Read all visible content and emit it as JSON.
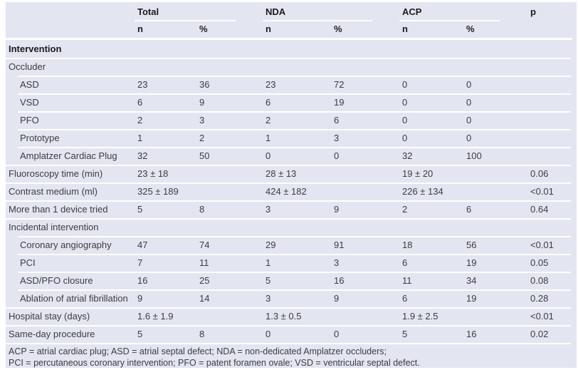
{
  "table": {
    "col_groups": [
      {
        "label": "Total"
      },
      {
        "label": "NDA"
      },
      {
        "label": "ACP"
      }
    ],
    "p_label": "p",
    "subheaders": [
      "n",
      "%",
      "n",
      "%",
      "n",
      "%"
    ],
    "rows": [
      {
        "label": "Intervention",
        "bold": true,
        "indent": false,
        "cells": [
          "",
          "",
          "",
          "",
          "",
          "",
          ""
        ]
      },
      {
        "label": "Occluder",
        "indent": false,
        "cells": [
          "",
          "",
          "",
          "",
          "",
          "",
          ""
        ]
      },
      {
        "label": "ASD",
        "indent": true,
        "cells": [
          "23",
          "36",
          "23",
          "72",
          "0",
          "0",
          ""
        ]
      },
      {
        "label": "VSD",
        "indent": true,
        "cells": [
          "6",
          "9",
          "6",
          "19",
          "0",
          "0",
          ""
        ]
      },
      {
        "label": "PFO",
        "indent": true,
        "cells": [
          "2",
          "3",
          "2",
          "6",
          "0",
          "0",
          ""
        ]
      },
      {
        "label": "Prototype",
        "indent": true,
        "cells": [
          "1",
          "2",
          "1",
          "3",
          "0",
          "0",
          ""
        ]
      },
      {
        "label": "Amplatzer Cardiac Plug",
        "indent": true,
        "cells": [
          "32",
          "50",
          "0",
          "0",
          "32",
          "100",
          ""
        ]
      },
      {
        "label": "Fluoroscopy time (min)",
        "indent": false,
        "cells": [
          "23 ± 18",
          "",
          "28 ± 13",
          "",
          "19 ± 20",
          "",
          "0.06"
        ]
      },
      {
        "label": "Contrast medium (ml)",
        "indent": false,
        "cells": [
          "325 ± 189",
          "",
          "424 ± 182",
          "",
          "226 ± 134",
          "",
          "<0.01"
        ]
      },
      {
        "label": "More than 1 device tried",
        "indent": false,
        "cells": [
          "5",
          "8",
          "3",
          "9",
          "2",
          "6",
          "0.64"
        ]
      },
      {
        "label": "Incidental intervention",
        "indent": false,
        "cells": [
          "",
          "",
          "",
          "",
          "",
          "",
          ""
        ]
      },
      {
        "label": "Coronary angiography",
        "indent": true,
        "cells": [
          "47",
          "74",
          "29",
          "91",
          "18",
          "56",
          "<0.01"
        ]
      },
      {
        "label": "PCI",
        "indent": true,
        "cells": [
          "7",
          "11",
          "1",
          "3",
          "6",
          "19",
          "0.05"
        ]
      },
      {
        "label": "ASD/PFO closure",
        "indent": true,
        "cells": [
          "16",
          "25",
          "5",
          "16",
          "11",
          "34",
          "0.08"
        ]
      },
      {
        "label": "Ablation of atrial fibrillation",
        "indent": true,
        "cells": [
          "9",
          "14",
          "3",
          "9",
          "6",
          "19",
          "0.28"
        ]
      },
      {
        "label": "Hospital stay (days)",
        "indent": false,
        "cells": [
          "1.6 ± 1.9",
          "",
          "1.3 ± 0.5",
          "",
          "1.9 ± 2.5",
          "",
          "<0.01"
        ]
      },
      {
        "label": "Same-day procedure",
        "indent": false,
        "cells": [
          "5",
          "8",
          "0",
          "0",
          "5",
          "16",
          "0.02"
        ]
      }
    ],
    "footnote_lines": [
      "ACP = atrial cardiac plug; ASD = atrial septal defect; NDA = non-dedicated Amplatzer occluders;",
      "PCI = percutaneous coronary intervention; PFO = patent foramen ovale; VSD = ventricular septal defect."
    ],
    "colors": {
      "panel": "#e3e5f1",
      "separator": "#ffffff",
      "text": "#3d3d3d",
      "heading": "#1b1b1b"
    }
  }
}
